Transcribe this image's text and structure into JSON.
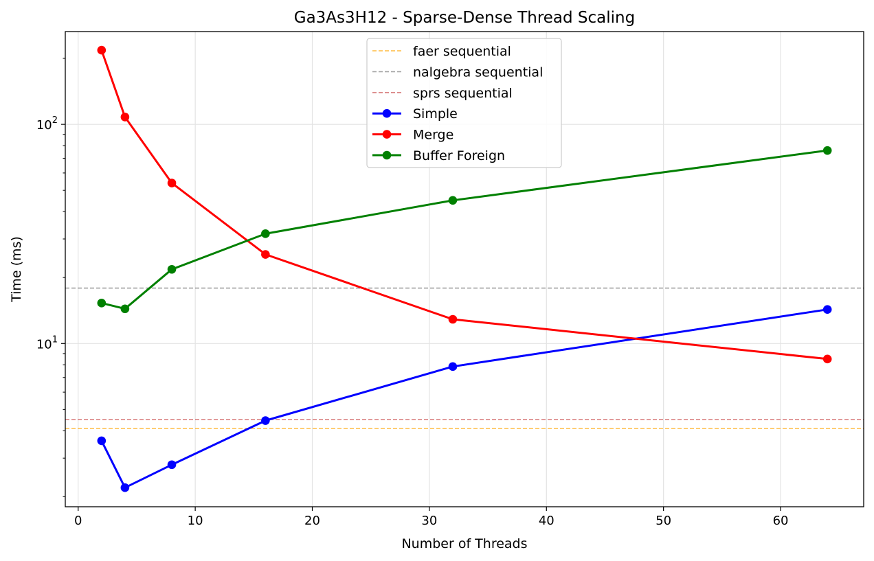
{
  "chart_data": {
    "type": "line",
    "title": "Ga3As3H12 - Sparse-Dense Thread Scaling",
    "xlabel": "Number of Threads",
    "ylabel": "Time (ms)",
    "yscale": "log",
    "xlim": [
      -1.1,
      67.1
    ],
    "ylim": [
      1.8,
      265
    ],
    "x_ticks": [
      0,
      10,
      20,
      30,
      40,
      50,
      60
    ],
    "x_tick_labels": [
      "0",
      "10",
      "20",
      "30",
      "40",
      "50",
      "60"
    ],
    "y_major_ticks": [
      10,
      100
    ],
    "y_tick_labels": [
      {
        "base": "10",
        "exp": "1"
      },
      {
        "base": "10",
        "exp": "2"
      }
    ],
    "y_minor_ticks": [
      2,
      3,
      4,
      5,
      6,
      7,
      8,
      9,
      20,
      30,
      40,
      50,
      60,
      70,
      80,
      90,
      200
    ],
    "grid": true,
    "legend_position": "upper center",
    "reference_lines": [
      {
        "name": "faer sequential",
        "value": 4.1,
        "color": "#FFA500"
      },
      {
        "name": "nalgebra sequential",
        "value": 17.9,
        "color": "#808080"
      },
      {
        "name": "sprs sequential",
        "value": 4.5,
        "color": "#CD5C5C"
      }
    ],
    "x": [
      2,
      4,
      8,
      16,
      32,
      64
    ],
    "series": [
      {
        "name": "Simple",
        "color": "#0000FF",
        "values": [
          3.6,
          2.2,
          2.8,
          4.45,
          7.85,
          14.3
        ]
      },
      {
        "name": "Merge",
        "color": "#FF0000",
        "values": [
          218,
          108,
          54,
          25.5,
          12.9,
          8.5
        ]
      },
      {
        "name": "Buffer Foreign",
        "color": "#008000",
        "values": [
          15.3,
          14.4,
          21.8,
          31.7,
          45,
          76
        ]
      }
    ]
  }
}
